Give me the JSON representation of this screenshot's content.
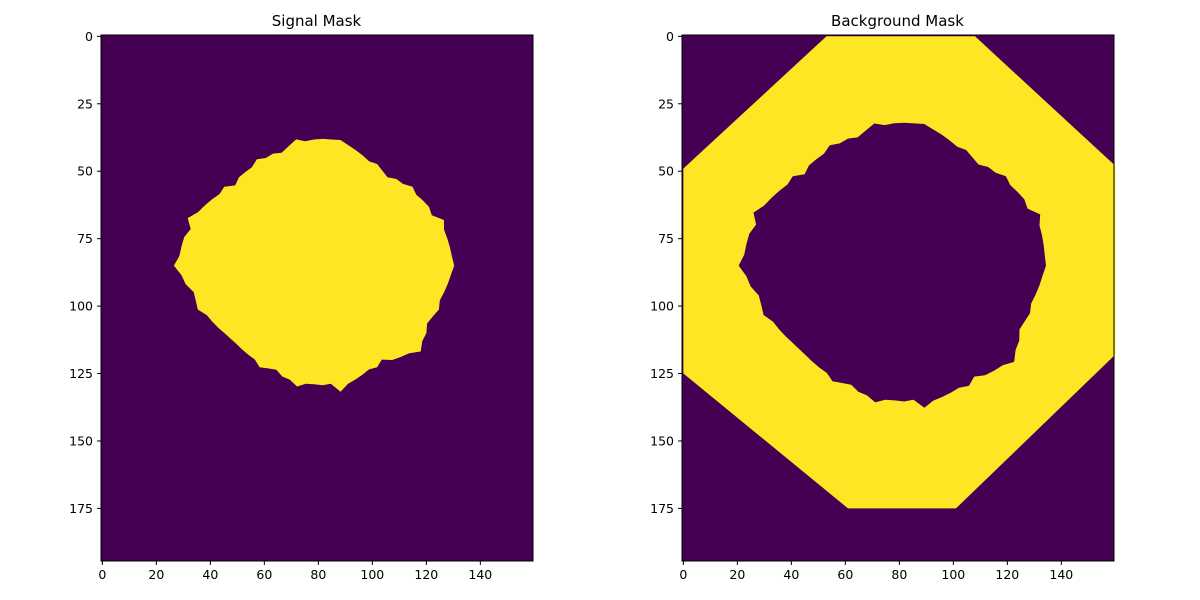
{
  "chart_data": [
    {
      "type": "heatmap",
      "title": "Signal Mask",
      "image_shape": [
        195,
        160
      ],
      "xlim": [
        -0.5,
        159.5
      ],
      "ylim": [
        194.5,
        -0.5
      ],
      "x_ticks": [
        0,
        20,
        40,
        60,
        80,
        100,
        120,
        140
      ],
      "y_ticks": [
        0,
        25,
        50,
        75,
        100,
        125,
        150,
        175
      ],
      "x_tick_labels": [
        "0",
        "20",
        "40",
        "60",
        "80",
        "100",
        "120",
        "140"
      ],
      "y_tick_labels": [
        "0",
        "25",
        "50",
        "75",
        "100",
        "125",
        "150",
        "175"
      ],
      "colormap": {
        "0": "#440154",
        "1": "#fde725"
      },
      "mask_value_region": {
        "value": 1,
        "shape": "irregular blob",
        "center": [
          80,
          85
        ],
        "row_extent": [
          37,
          131
        ],
        "col_extent": [
          25,
          132
        ],
        "radius_by_angle_deg": [
          [
            0,
            50
          ],
          [
            20,
            46
          ],
          [
            40,
            48
          ],
          [
            60,
            42
          ],
          [
            80,
            46
          ],
          [
            90,
            44
          ],
          [
            100,
            44
          ],
          [
            120,
            42
          ],
          [
            140,
            42
          ],
          [
            160,
            46
          ],
          [
            180,
            52
          ],
          [
            200,
            50
          ],
          [
            220,
            44
          ],
          [
            240,
            44
          ],
          [
            260,
            46
          ],
          [
            270,
            47
          ],
          [
            280,
            47
          ],
          [
            300,
            42
          ],
          [
            320,
            44
          ],
          [
            340,
            48
          ]
        ]
      }
    },
    {
      "type": "heatmap",
      "title": "Background Mask",
      "image_shape": [
        195,
        160
      ],
      "xlim": [
        -0.5,
        159.5
      ],
      "ylim": [
        194.5,
        -0.5
      ],
      "x_ticks": [
        0,
        20,
        40,
        60,
        80,
        100,
        120,
        140
      ],
      "y_ticks": [
        0,
        25,
        50,
        75,
        100,
        125,
        150,
        175
      ],
      "x_tick_labels": [
        "0",
        "20",
        "40",
        "60",
        "80",
        "100",
        "120",
        "140"
      ],
      "y_tick_labels": [
        "0",
        "25",
        "50",
        "75",
        "100",
        "125",
        "150",
        "175"
      ],
      "colormap": {
        "0": "#440154",
        "1": "#fde725"
      },
      "mask_value_region": {
        "value": 1,
        "shape": "ring: inside octagon, outside blob",
        "octagon_vertices": [
          [
            53,
            0
          ],
          [
            108,
            0
          ],
          [
            160,
            48
          ],
          [
            160,
            118
          ],
          [
            101,
            175
          ],
          [
            61,
            175
          ],
          [
            0,
            125
          ],
          [
            0,
            49
          ]
        ],
        "inner_hole_center": [
          80,
          85
        ],
        "inner_hole_row_extent": [
          31,
          136
        ],
        "inner_hole_col_extent": [
          19,
          136
        ],
        "inner_radius_by_angle_deg": [
          [
            0,
            54
          ],
          [
            20,
            50
          ],
          [
            40,
            54
          ],
          [
            60,
            50
          ],
          [
            80,
            52
          ],
          [
            90,
            50
          ],
          [
            100,
            50
          ],
          [
            120,
            48
          ],
          [
            140,
            48
          ],
          [
            160,
            52
          ],
          [
            180,
            58
          ],
          [
            200,
            56
          ],
          [
            220,
            50
          ],
          [
            240,
            50
          ],
          [
            260,
            52
          ],
          [
            270,
            53
          ],
          [
            280,
            53
          ],
          [
            300,
            48
          ],
          [
            320,
            50
          ],
          [
            340,
            54
          ]
        ]
      }
    }
  ]
}
